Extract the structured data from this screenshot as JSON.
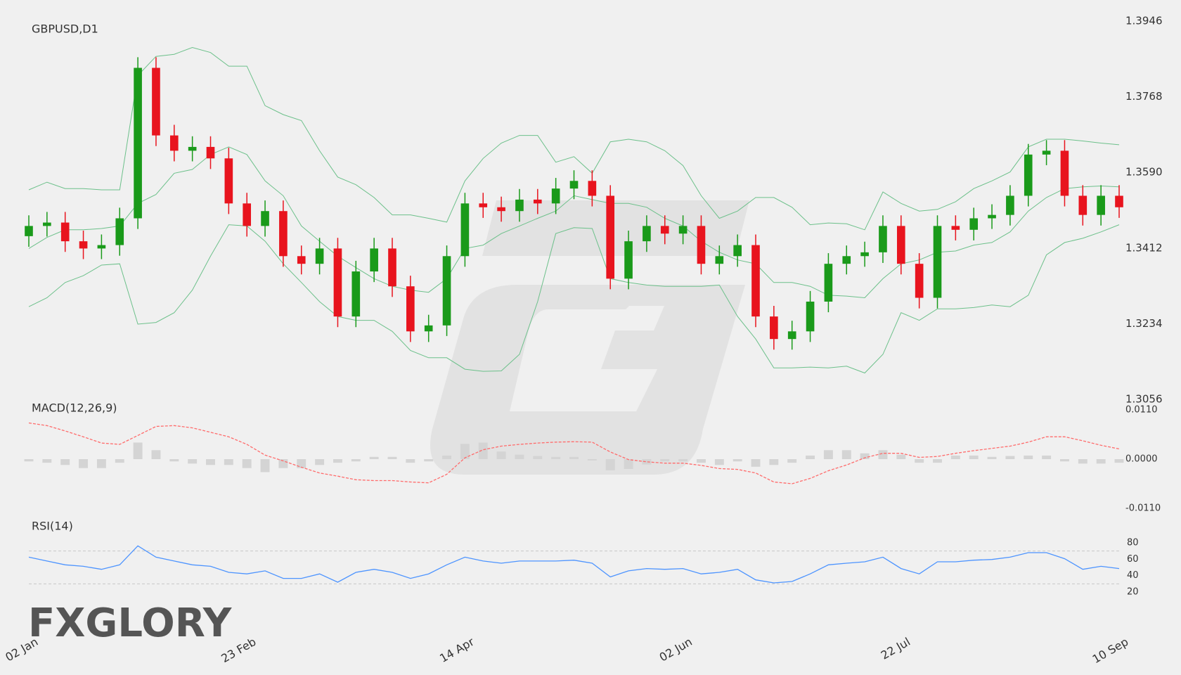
{
  "logo": "FXGLORY",
  "chart_data": [
    {
      "type": "candlestick",
      "title": "GBPUSD,D1",
      "categories": [
        "02 Jan",
        null,
        null,
        null,
        null,
        null,
        null,
        null,
        null,
        null,
        null,
        null,
        "23 Feb",
        null,
        null,
        null,
        null,
        null,
        null,
        null,
        null,
        null,
        null,
        null,
        "14 Apr",
        null,
        null,
        null,
        null,
        null,
        null,
        null,
        null,
        null,
        null,
        null,
        "02 Jun",
        null,
        null,
        null,
        null,
        null,
        null,
        null,
        null,
        null,
        null,
        null,
        "22 Jul",
        null,
        null,
        null,
        null,
        null,
        null,
        null,
        null,
        null,
        null,
        null,
        "10 Sep"
      ],
      "open": [
        1.344,
        1.3464,
        1.3472,
        1.3428,
        1.3411,
        1.3419,
        1.3482,
        1.3836,
        1.3677,
        1.3641,
        1.365,
        1.3623,
        1.3517,
        1.3464,
        1.3499,
        1.3393,
        1.3375,
        1.3411,
        1.3251,
        1.3357,
        1.3411,
        1.3322,
        1.3216,
        1.323,
        1.3393,
        1.3517,
        1.3508,
        1.3499,
        1.3526,
        1.3517,
        1.3552,
        1.357,
        1.3535,
        1.334,
        1.3428,
        1.3464,
        1.3446,
        1.3464,
        1.3375,
        1.3393,
        1.3419,
        1.3251,
        1.3198,
        1.3216,
        1.3286,
        1.3375,
        1.3393,
        1.3402,
        1.3464,
        1.3375,
        1.3295,
        1.3464,
        1.3455,
        1.3482,
        1.349,
        1.3535,
        1.3632,
        1.3641,
        1.3535,
        1.349,
        1.3535
      ],
      "high": [
        1.3489,
        1.3497,
        1.3497,
        1.3453,
        1.3444,
        1.3507,
        1.3861,
        1.3861,
        1.3702,
        1.3675,
        1.3675,
        1.3648,
        1.3542,
        1.3524,
        1.3524,
        1.3418,
        1.3436,
        1.3436,
        1.3382,
        1.3436,
        1.3436,
        1.3347,
        1.3255,
        1.3418,
        1.3542,
        1.3542,
        1.3533,
        1.3551,
        1.3551,
        1.3577,
        1.3595,
        1.3595,
        1.356,
        1.3453,
        1.3489,
        1.3489,
        1.3489,
        1.3489,
        1.3418,
        1.3444,
        1.3444,
        1.3276,
        1.3241,
        1.3311,
        1.34,
        1.3418,
        1.3427,
        1.3489,
        1.3489,
        1.34,
        1.3489,
        1.3489,
        1.3507,
        1.3515,
        1.356,
        1.3657,
        1.3666,
        1.3666,
        1.356,
        1.356,
        1.356
      ],
      "low": [
        1.3415,
        1.3439,
        1.3403,
        1.3386,
        1.3386,
        1.3394,
        1.3457,
        1.3652,
        1.3616,
        1.3616,
        1.3598,
        1.3492,
        1.3439,
        1.3439,
        1.3368,
        1.335,
        1.335,
        1.3226,
        1.3226,
        1.3332,
        1.3297,
        1.3191,
        1.3191,
        1.3205,
        1.3368,
        1.3483,
        1.3474,
        1.3474,
        1.3492,
        1.3492,
        1.3527,
        1.351,
        1.3315,
        1.3315,
        1.3403,
        1.3421,
        1.3421,
        1.335,
        1.335,
        1.3368,
        1.3226,
        1.3173,
        1.3173,
        1.3191,
        1.3261,
        1.335,
        1.3368,
        1.3377,
        1.335,
        1.327,
        1.327,
        1.343,
        1.343,
        1.3457,
        1.3465,
        1.351,
        1.3607,
        1.351,
        1.3465,
        1.3465,
        1.3483
      ],
      "close": [
        1.3464,
        1.3472,
        1.3428,
        1.3411,
        1.3419,
        1.3482,
        1.3836,
        1.3677,
        1.3641,
        1.365,
        1.3623,
        1.3517,
        1.3464,
        1.3499,
        1.3393,
        1.3375,
        1.3411,
        1.3251,
        1.3357,
        1.3411,
        1.3322,
        1.3216,
        1.323,
        1.3393,
        1.3517,
        1.3508,
        1.3499,
        1.3526,
        1.3517,
        1.3552,
        1.357,
        1.3535,
        1.334,
        1.3428,
        1.3464,
        1.3446,
        1.3464,
        1.3375,
        1.3393,
        1.3419,
        1.3251,
        1.3198,
        1.3216,
        1.3286,
        1.3375,
        1.3393,
        1.3402,
        1.3464,
        1.3375,
        1.3295,
        1.3464,
        1.3455,
        1.3482,
        1.349,
        1.3535,
        1.3632,
        1.3641,
        1.3535,
        1.349,
        1.3535,
        1.3508
      ],
      "up_color": "#1a9a1a",
      "down_color": "#e8141e",
      "bands": {
        "color": "#6cc08a",
        "upper": [
          1.3549,
          1.3567,
          1.3552,
          1.3552,
          1.3549,
          1.3549,
          1.3818,
          1.3863,
          1.3868,
          1.3884,
          1.3872,
          1.384,
          1.384,
          1.3747,
          1.3726,
          1.3712,
          1.3641,
          1.3579,
          1.3561,
          1.3531,
          1.349,
          1.349,
          1.3482,
          1.3473,
          1.357,
          1.3623,
          1.3659,
          1.3677,
          1.3677,
          1.3614,
          1.3627,
          1.3588,
          1.3662,
          1.3668,
          1.3662,
          1.3641,
          1.3606,
          1.3535,
          1.3482,
          1.3499,
          1.3531,
          1.3531,
          1.3508,
          1.3467,
          1.3471,
          1.3469,
          1.3455,
          1.3544,
          1.3517,
          1.3499,
          1.3503,
          1.3521,
          1.3552,
          1.357,
          1.3591,
          1.365,
          1.3668,
          1.3668,
          1.3664,
          1.3659,
          1.3655
        ],
        "middle": [
          1.3411,
          1.3437,
          1.3455,
          1.3455,
          1.3458,
          1.3464,
          1.3517,
          1.3538,
          1.3588,
          1.3597,
          1.3632,
          1.365,
          1.3632,
          1.357,
          1.3535,
          1.3464,
          1.3428,
          1.3393,
          1.3366,
          1.334,
          1.3322,
          1.3313,
          1.3308,
          1.334,
          1.3411,
          1.3419,
          1.3446,
          1.3464,
          1.3482,
          1.3499,
          1.3535,
          1.3526,
          1.3517,
          1.3517,
          1.3508,
          1.3482,
          1.3464,
          1.3428,
          1.3402,
          1.3384,
          1.3375,
          1.3331,
          1.3331,
          1.3322,
          1.3301,
          1.3299,
          1.3295,
          1.334,
          1.3375,
          1.3384,
          1.3402,
          1.3405,
          1.3419,
          1.3425,
          1.345,
          1.3499,
          1.3531,
          1.3552,
          1.3556,
          1.3558,
          1.3556
        ],
        "lower": [
          1.3274,
          1.3295,
          1.3331,
          1.3347,
          1.3372,
          1.3375,
          1.3233,
          1.3237,
          1.326,
          1.3313,
          1.3393,
          1.3467,
          1.3464,
          1.3428,
          1.3375,
          1.3331,
          1.3286,
          1.3251,
          1.3242,
          1.3242,
          1.3216,
          1.3171,
          1.3154,
          1.3154,
          1.3127,
          1.3122,
          1.3123,
          1.3162,
          1.3286,
          1.3446,
          1.346,
          1.3458,
          1.334,
          1.3331,
          1.3325,
          1.3322,
          1.3322,
          1.3322,
          1.3325,
          1.3251,
          1.3198,
          1.313,
          1.313,
          1.3132,
          1.313,
          1.3134,
          1.3118,
          1.3162,
          1.326,
          1.3242,
          1.3269,
          1.3269,
          1.3272,
          1.3278,
          1.3274,
          1.3301,
          1.3396,
          1.3425,
          1.3435,
          1.345,
          1.3467
        ]
      },
      "ylim": [
        1.3056,
        1.3946
      ],
      "yticks": [
        1.3946,
        1.3768,
        {
          "value": 1.359,
          "label": "1.3590"
        },
        1.3412,
        1.3234,
        1.3056
      ]
    },
    {
      "type": "macd",
      "title": "MACD(12,26,9)",
      "values": [
        0.0081,
        0.0075,
        0.0063,
        0.005,
        0.0036,
        0.0033,
        0.0053,
        0.0073,
        0.0075,
        0.007,
        0.006,
        0.005,
        0.0033,
        0.0009,
        -0.0004,
        -0.0018,
        -0.0031,
        -0.0038,
        -0.0046,
        -0.0048,
        -0.0048,
        -0.0051,
        -0.0053,
        -0.0034,
        0.0003,
        0.0021,
        0.0029,
        0.0033,
        0.0036,
        0.0038,
        0.0039,
        0.0038,
        0.0016,
        -0.0001,
        -0.0006,
        -0.0009,
        -0.0009,
        -0.0014,
        -0.0021,
        -0.0023,
        -0.0031,
        -0.0051,
        -0.0055,
        -0.0043,
        -0.0026,
        -0.0013,
        0.0003,
        0.0013,
        0.0013,
        0.0004,
        0.0006,
        0.0013,
        0.0019,
        0.0024,
        0.0029,
        0.0038,
        0.005,
        0.005,
        0.0041,
        0.0031,
        0.0023
      ],
      "color": "#ff6b6b",
      "histogram": [
        -0.0005,
        -0.0008,
        -0.0013,
        -0.002,
        -0.002,
        -0.0008,
        0.0037,
        0.002,
        -0.0005,
        -0.001,
        -0.0013,
        -0.0013,
        -0.002,
        -0.0029,
        -0.002,
        -0.002,
        -0.0013,
        -0.0008,
        -0.0005,
        0.0005,
        0.0005,
        -0.0008,
        -0.0005,
        0.0008,
        0.0034,
        0.0037,
        0.0017,
        0.001,
        0.0007,
        0.0005,
        0.0005,
        -0.0003,
        -0.0025,
        -0.0022,
        -0.0012,
        -0.0005,
        -0.0005,
        -0.0008,
        -0.0013,
        -0.0005,
        -0.0017,
        -0.0013,
        -0.0008,
        0.0008,
        0.002,
        0.002,
        0.0013,
        0.002,
        0.001,
        -0.0008,
        -0.0008,
        0.0008,
        0.0008,
        0.0005,
        0.0007,
        0.0008,
        0.0008,
        -0.0005,
        -0.001,
        -0.001,
        -0.0008
      ],
      "histogram_color": "#d4d4d4",
      "ylim": [
        -0.011,
        0.011
      ],
      "yticks": [
        {
          "value": 0.011,
          "label": "0.0110"
        },
        {
          "value": 0,
          "label": "0.0000"
        },
        {
          "value": -0.011,
          "label": "-0.0110"
        }
      ]
    },
    {
      "type": "rsi",
      "title": "RSI(14)",
      "values": [
        62.5,
        57.8,
        53.2,
        51.4,
        47.7,
        53.2,
        76.3,
        62.5,
        57.8,
        53.2,
        51.4,
        44.0,
        42.1,
        45.8,
        36.6,
        36.6,
        42.1,
        32.0,
        44.0,
        47.7,
        44.0,
        36.6,
        42.1,
        53.2,
        62.5,
        57.8,
        55.1,
        57.8,
        57.8,
        57.8,
        58.8,
        55.1,
        38.4,
        45.8,
        48.6,
        47.7,
        48.6,
        42.1,
        44.0,
        47.7,
        34.8,
        31.1,
        32.9,
        42.1,
        53.2,
        55.1,
        56.9,
        62.5,
        48.6,
        42.1,
        56.9,
        56.9,
        58.8,
        59.7,
        62.5,
        68.0,
        68.0,
        60.6,
        47.7,
        51.4,
        48.6
      ],
      "color": "#4d94ff",
      "levels": [
        70,
        30
      ],
      "ylim": [
        20,
        80
      ],
      "yticks": [
        80,
        60,
        40,
        20
      ]
    }
  ]
}
